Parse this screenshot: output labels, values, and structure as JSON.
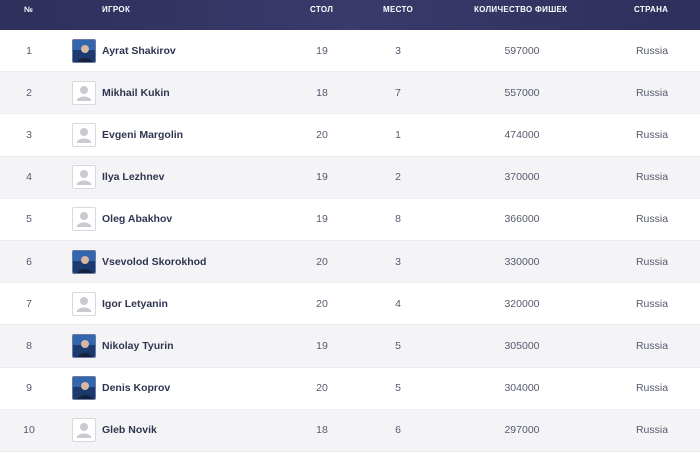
{
  "header": {
    "num": "№",
    "player": "ИГРОК",
    "table": "СТОЛ",
    "place": "МЕСТО",
    "chips": "КОЛИЧЕСТВО ФИШЕК",
    "country": "СТРАНА"
  },
  "rows": [
    {
      "num": "1",
      "name": "Ayrat Shakirov",
      "table": "19",
      "place": "3",
      "chips": "597000",
      "country": "Russia",
      "avatar": "photo"
    },
    {
      "num": "2",
      "name": "Mikhail Kukin",
      "table": "18",
      "place": "7",
      "chips": "557000",
      "country": "Russia",
      "avatar": "placeholder"
    },
    {
      "num": "3",
      "name": "Evgeni Margolin",
      "table": "20",
      "place": "1",
      "chips": "474000",
      "country": "Russia",
      "avatar": "placeholder"
    },
    {
      "num": "4",
      "name": "Ilya Lezhnev",
      "table": "19",
      "place": "2",
      "chips": "370000",
      "country": "Russia",
      "avatar": "placeholder"
    },
    {
      "num": "5",
      "name": "Oleg Abakhov",
      "table": "19",
      "place": "8",
      "chips": "366000",
      "country": "Russia",
      "avatar": "placeholder"
    },
    {
      "num": "6",
      "name": "Vsevolod Skorokhod",
      "table": "20",
      "place": "3",
      "chips": "330000",
      "country": "Russia",
      "avatar": "photo"
    },
    {
      "num": "7",
      "name": "Igor Letyanin",
      "table": "20",
      "place": "4",
      "chips": "320000",
      "country": "Russia",
      "avatar": "placeholder"
    },
    {
      "num": "8",
      "name": "Nikolay Tyurin",
      "table": "19",
      "place": "5",
      "chips": "305000",
      "country": "Russia",
      "avatar": "photo"
    },
    {
      "num": "9",
      "name": "Denis Koprov",
      "table": "20",
      "place": "5",
      "chips": "304000",
      "country": "Russia",
      "avatar": "photo"
    },
    {
      "num": "10",
      "name": "Gleb Novik",
      "table": "18",
      "place": "6",
      "chips": "297000",
      "country": "Russia",
      "avatar": "placeholder"
    }
  ],
  "colors": {
    "header_bg": "#2f2f5c",
    "row_alt_bg": "#f4f4f6",
    "text": "#555a6e"
  }
}
